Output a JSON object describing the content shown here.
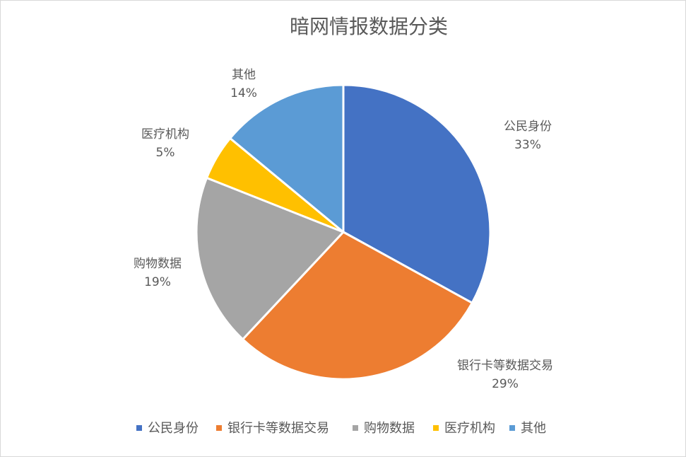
{
  "chart_data": {
    "type": "pie",
    "title": "暗网情报数据分类",
    "categories": [
      "公民身份",
      "银行卡等数据交易",
      "购物数据",
      "医疗机构",
      "其他"
    ],
    "values": [
      33,
      29,
      19,
      5,
      14
    ],
    "value_labels": [
      "33%",
      "29%",
      "19%",
      "5%",
      "14%"
    ],
    "colors": [
      "#4472C4",
      "#ED7D31",
      "#A5A5A5",
      "#FFC000",
      "#5B9BD5"
    ],
    "start_angle_deg": 0,
    "direction": "clockwise",
    "legend_position": "bottom",
    "data_labels": "category and percentage, outside slices"
  }
}
